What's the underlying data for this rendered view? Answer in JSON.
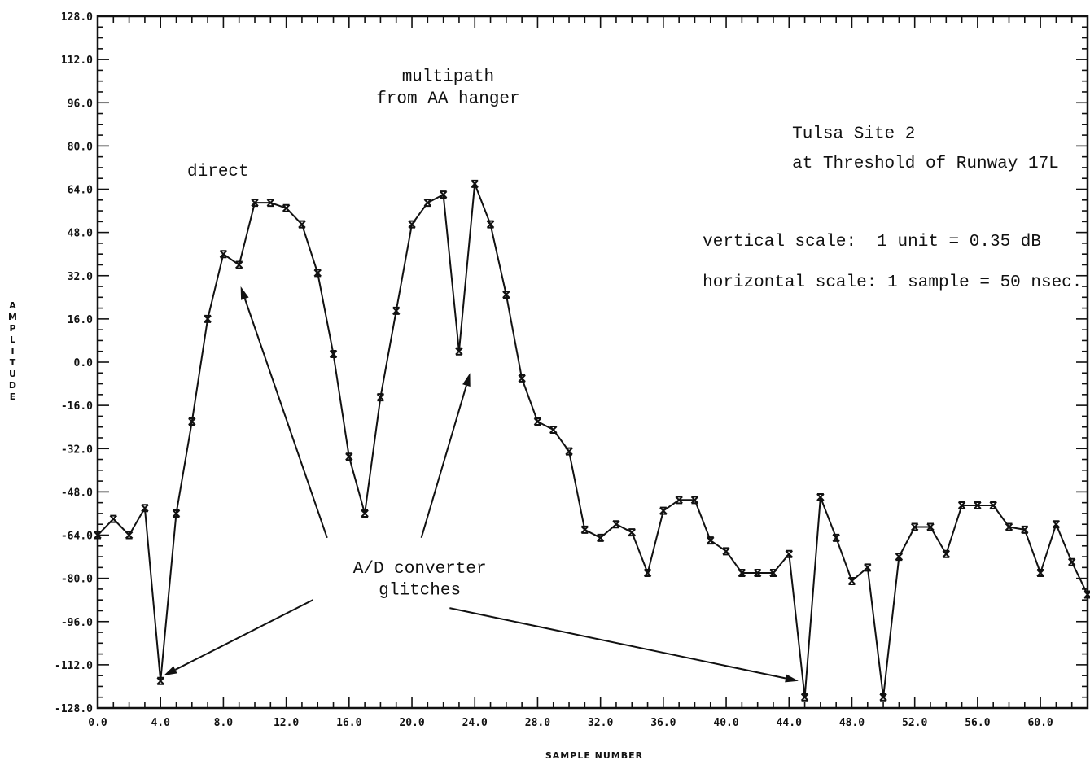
{
  "chart_data": {
    "type": "line",
    "title": "",
    "xlabel": "SAMPLE NUMBER",
    "ylabel": "AMPLITUDE",
    "xlim": [
      0,
      63
    ],
    "ylim": [
      -128,
      128
    ],
    "x_ticks": [
      0,
      4,
      8,
      12,
      16,
      20,
      24,
      28,
      32,
      36,
      40,
      44,
      48,
      52,
      56,
      60
    ],
    "x_tick_labels": [
      "0.0",
      "4.0",
      "8.0",
      "12.0",
      "16.0",
      "20.0",
      "24.0",
      "28.0",
      "32.0",
      "36.0",
      "40.0",
      "44.0",
      "48.0",
      "52.0",
      "56.0",
      "60.0"
    ],
    "y_ticks": [
      -128,
      -112,
      -96,
      -80,
      -64,
      -48,
      -32,
      -16,
      0,
      16,
      32,
      48,
      64,
      80,
      96,
      112,
      128
    ],
    "y_tick_labels": [
      "-128.0",
      "-112.0",
      "-96.0",
      "-80.0",
      "-64.0",
      "-48.0",
      "-32.0",
      "-16.0",
      "0.0",
      "16.0",
      "32.0",
      "48.0",
      "64.0",
      "80.0",
      "96.0",
      "112.0",
      "128.0"
    ],
    "grid": false,
    "series": [
      {
        "x": [
          0,
          1,
          2,
          3,
          4,
          5,
          6,
          7,
          8,
          9,
          10,
          11,
          12,
          13,
          14,
          15,
          16,
          17,
          18,
          19,
          20,
          21,
          22,
          23,
          24,
          25,
          26,
          27,
          28,
          29,
          30,
          31,
          32,
          33,
          34,
          35,
          36,
          37,
          38,
          39,
          40,
          41,
          42,
          43,
          44,
          45,
          46,
          47,
          48,
          49,
          50,
          51,
          52,
          53,
          54,
          55,
          56,
          57,
          58,
          59,
          60,
          61,
          62,
          63
        ],
        "y": [
          -64,
          -58,
          -64,
          -54,
          -118,
          -56,
          -22,
          16,
          40,
          36,
          59,
          59,
          57,
          51,
          33,
          3,
          -35,
          -56,
          -13,
          19,
          51,
          59,
          62,
          4,
          66,
          51,
          25,
          -6,
          -22,
          -25,
          -33,
          -62,
          -65,
          -60,
          -63,
          -78,
          -55,
          -51,
          -51,
          -66,
          -70,
          -78,
          -78,
          -78,
          -71,
          -124,
          -50,
          -65,
          -81,
          -76,
          -124,
          -72,
          -61,
          -61,
          -71,
          -53,
          -53,
          -53,
          -61,
          -62,
          -78,
          -60,
          -74,
          -86
        ]
      }
    ],
    "annotations": [
      {
        "text": "direct",
        "anchor_x": 5.7,
        "anchor_y": 69
      },
      {
        "text": "multipath",
        "anchor_x": 22.3,
        "anchor_y": 104
      },
      {
        "text": "from AA hanger",
        "anchor_x": 22.3,
        "anchor_y": 96
      },
      {
        "text": "Tulsa Site 2",
        "anchor_x": 44.2,
        "anchor_y": 83
      },
      {
        "text": "at Threshold of Runway 17L",
        "anchor_x": 44.2,
        "anchor_y": 72
      },
      {
        "text": "vertical scale:  1 unit = 0.35 dB",
        "anchor_x": 38.5,
        "anchor_y": 43
      },
      {
        "text": "horizontal scale: 1 sample = 50 nsec.",
        "anchor_x": 38.5,
        "anchor_y": 28
      },
      {
        "text": "A/D converter",
        "anchor_x": 20.5,
        "anchor_y": -78
      },
      {
        "text": "glitches",
        "anchor_x": 20.5,
        "anchor_y": -86
      }
    ],
    "arrows": [
      {
        "from": [
          14.6,
          -65
        ],
        "to": [
          9.1,
          28
        ]
      },
      {
        "from": [
          20.6,
          -65
        ],
        "to": [
          23.7,
          -4
        ]
      },
      {
        "from": [
          13.7,
          -88
        ],
        "to": [
          4.2,
          -116
        ]
      },
      {
        "from": [
          22.4,
          -91
        ],
        "to": [
          44.6,
          -118
        ]
      }
    ]
  }
}
